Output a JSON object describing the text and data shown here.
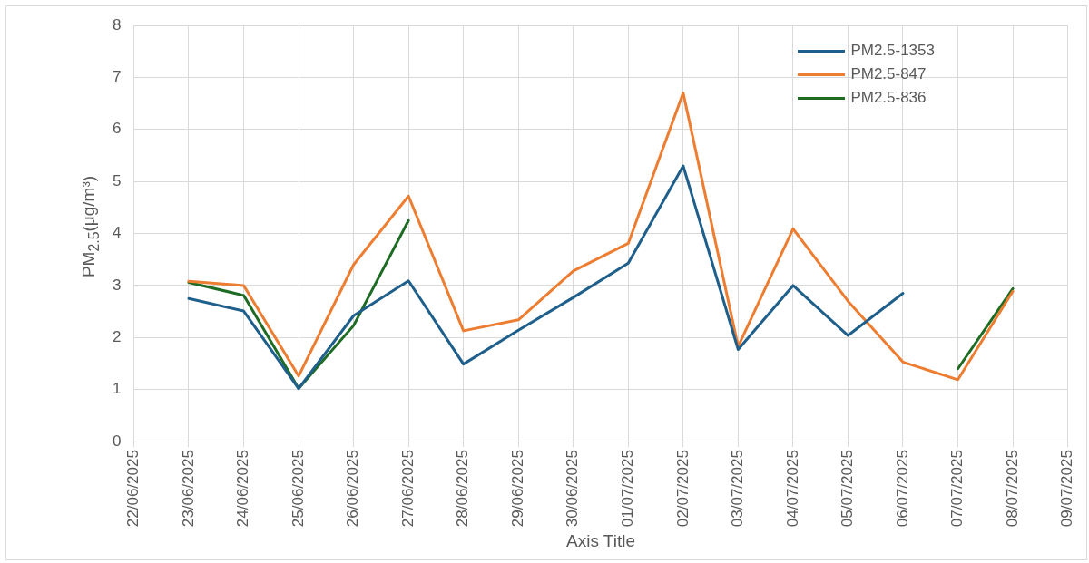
{
  "chart_data": {
    "type": "line",
    "xlabel": "Axis Title",
    "ylabel": "PM$_{2.5}$(μg/m³)",
    "categories": [
      "22/06/2025",
      "23/06/2025",
      "24/06/2025",
      "25/06/2025",
      "26/06/2025",
      "27/06/2025",
      "28/06/2025",
      "29/06/2025",
      "30/06/2025",
      "01/07/2025",
      "02/07/2025",
      "03/07/2025",
      "04/07/2025",
      "05/07/2025",
      "06/07/2025",
      "07/07/2025",
      "08/07/2025",
      "09/07/2025"
    ],
    "series": [
      {
        "name": "PM2.5-1353",
        "color": "#1f5f8b",
        "values": [
          null,
          2.75,
          2.51,
          1.02,
          2.42,
          3.09,
          1.49,
          2.14,
          2.77,
          3.43,
          5.3,
          1.77,
          3.0,
          2.04,
          2.85,
          null,
          null,
          null
        ]
      },
      {
        "name": "PM2.5-847",
        "color": "#ed7d31",
        "values": [
          null,
          3.08,
          3.0,
          1.26,
          3.4,
          4.72,
          2.13,
          2.34,
          3.28,
          3.81,
          6.7,
          1.83,
          4.09,
          2.7,
          1.53,
          1.19,
          2.89,
          null
        ]
      },
      {
        "name": "PM2.5-836",
        "color": "#1e6b24",
        "values": [
          null,
          3.06,
          2.81,
          1.02,
          2.23,
          4.25,
          null,
          null,
          null,
          null,
          null,
          null,
          null,
          null,
          null,
          1.4,
          2.94,
          null
        ]
      }
    ],
    "ylim": [
      0,
      8
    ],
    "yticks": [
      0,
      1,
      2,
      3,
      4,
      5,
      6,
      7,
      8
    ],
    "grid": true,
    "legend": "top right",
    "marker": "none",
    "line_style": "solid"
  }
}
